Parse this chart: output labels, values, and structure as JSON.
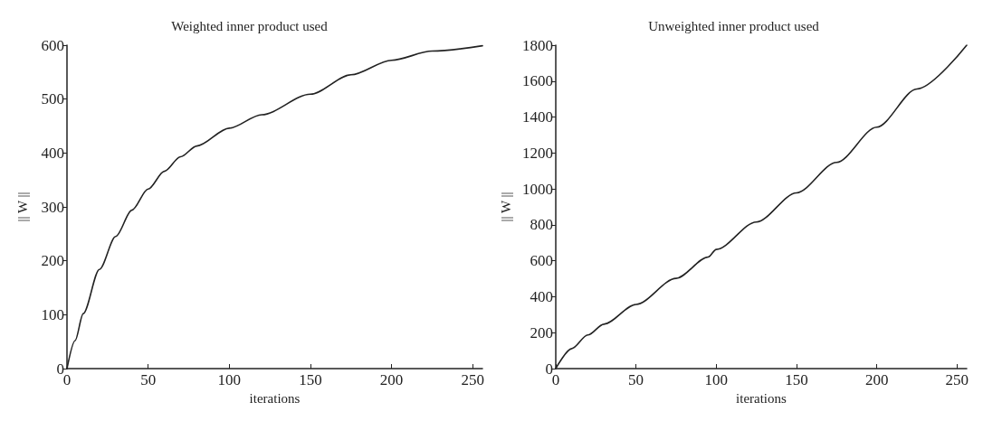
{
  "chart_data": [
    {
      "type": "line",
      "title": "Weighted inner product used",
      "xlabel": "iterations",
      "ylabel": "|| W ||",
      "grid": false,
      "marker": "none",
      "line_style": "solid",
      "xlim": [
        0,
        256
      ],
      "ylim": [
        0,
        600
      ],
      "xticks": [
        0,
        50,
        100,
        150,
        200,
        250
      ],
      "yticks": [
        0,
        100,
        200,
        300,
        400,
        500,
        600
      ],
      "series": [
        {
          "color": "#222222",
          "x": [
            0,
            5,
            10,
            20,
            30,
            40,
            50,
            60,
            70,
            80,
            100,
            120,
            150,
            175,
            200,
            225,
            256
          ],
          "values": [
            0,
            52,
            102,
            184,
            245,
            294,
            333,
            366,
            393,
            413,
            446,
            471,
            509,
            545,
            572,
            589,
            599
          ]
        }
      ]
    },
    {
      "type": "line",
      "title": "Unweighted inner product used",
      "xlabel": "iterations",
      "ylabel": "|| W ||",
      "grid": false,
      "marker": "none",
      "line_style": "solid",
      "xlim": [
        0,
        256
      ],
      "ylim": [
        0,
        1800
      ],
      "xticks": [
        0,
        50,
        100,
        150,
        200,
        250
      ],
      "yticks": [
        0,
        200,
        400,
        600,
        800,
        1000,
        1200,
        1400,
        1600,
        1800
      ],
      "series": [
        {
          "color": "#222222",
          "x": [
            0,
            10,
            20,
            30,
            50,
            75,
            95,
            100,
            125,
            150,
            175,
            200,
            225,
            256
          ],
          "values": [
            0,
            111,
            187,
            247,
            357,
            502,
            621,
            663,
            816,
            978,
            1148,
            1344,
            1556,
            1800
          ]
        }
      ]
    }
  ]
}
